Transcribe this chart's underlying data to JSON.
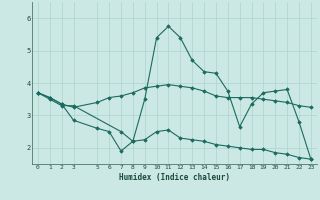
{
  "xlabel": "Humidex (Indice chaleur)",
  "bg_color": "#cce8e4",
  "line_color": "#1a6b5e",
  "grid_color": "#aad4cc",
  "xlim": [
    -0.5,
    23.5
  ],
  "ylim": [
    1.5,
    6.5
  ],
  "yticks": [
    2,
    3,
    4,
    5,
    6
  ],
  "xticks": [
    0,
    1,
    2,
    3,
    5,
    6,
    7,
    8,
    9,
    10,
    11,
    12,
    13,
    14,
    15,
    16,
    17,
    18,
    19,
    20,
    21,
    22,
    23
  ],
  "lines": [
    {
      "x": [
        0,
        1,
        2,
        3,
        7,
        8,
        9,
        10,
        11,
        12,
        13,
        14,
        15,
        16,
        17,
        18,
        19,
        20,
        21,
        22,
        23
      ],
      "y": [
        3.7,
        3.5,
        3.3,
        3.3,
        2.5,
        2.2,
        3.5,
        5.4,
        5.75,
        5.4,
        4.7,
        4.35,
        4.3,
        3.75,
        2.65,
        3.35,
        3.7,
        3.75,
        3.8,
        2.8,
        1.65
      ]
    },
    {
      "x": [
        0,
        1,
        2,
        3,
        5,
        6,
        7,
        8,
        9,
        10,
        11,
        12,
        13,
        14,
        15,
        16,
        17,
        18,
        19,
        20,
        21,
        22,
        23
      ],
      "y": [
        3.7,
        3.55,
        3.35,
        3.25,
        3.4,
        3.55,
        3.6,
        3.7,
        3.85,
        3.9,
        3.95,
        3.9,
        3.85,
        3.75,
        3.6,
        3.55,
        3.55,
        3.55,
        3.5,
        3.45,
        3.4,
        3.3,
        3.25
      ]
    },
    {
      "x": [
        0,
        1,
        2,
        3,
        5,
        6,
        7,
        8,
        9,
        10,
        11,
        12,
        13,
        14,
        15,
        16,
        17,
        18,
        19,
        20,
        21,
        22,
        23
      ],
      "y": [
        3.7,
        3.55,
        3.35,
        2.85,
        2.6,
        2.5,
        1.9,
        2.2,
        2.25,
        2.5,
        2.55,
        2.3,
        2.25,
        2.2,
        2.1,
        2.05,
        2.0,
        1.95,
        1.95,
        1.85,
        1.8,
        1.7,
        1.65
      ]
    }
  ]
}
